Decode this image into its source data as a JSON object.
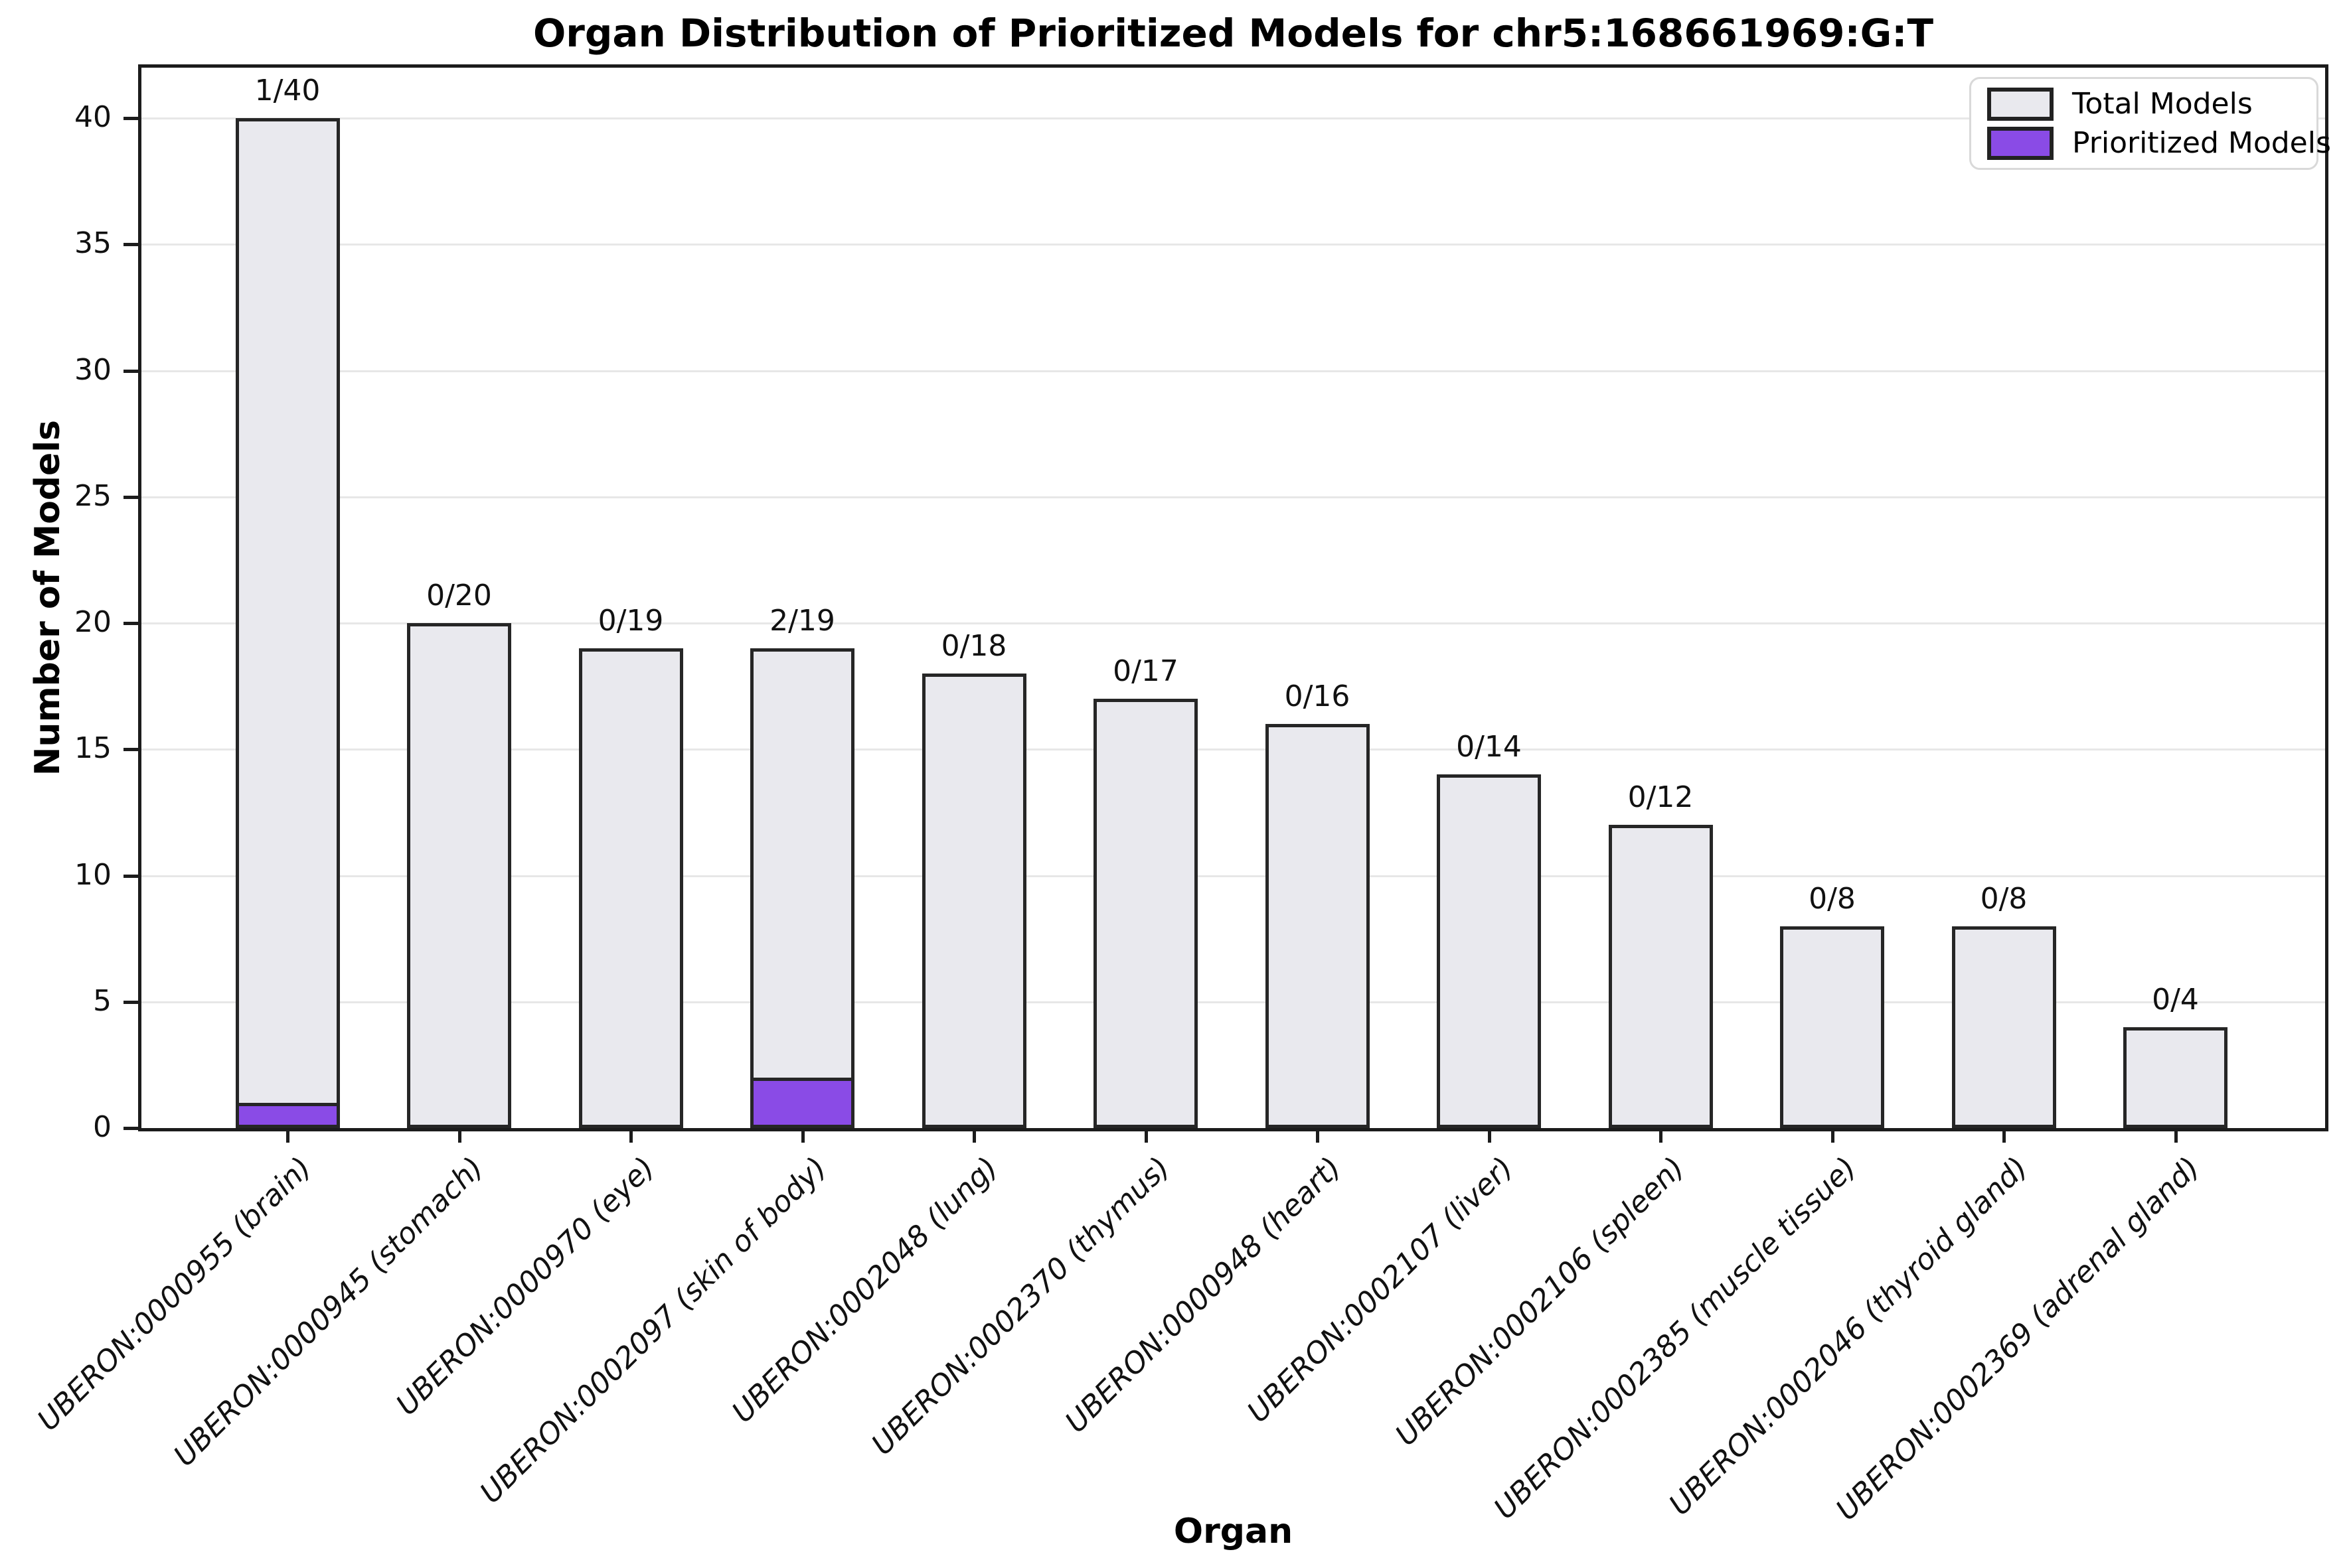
{
  "title": "Organ Distribution of Prioritized Models for chr5:168661969:G:T",
  "chart_data": {
    "type": "bar",
    "title": "Organ Distribution of Prioritized Models for chr5:168661969:G:T",
    "xlabel": "Organ",
    "ylabel": "Number of Models",
    "ylim": [
      0,
      42
    ],
    "yticks": [
      0,
      5,
      10,
      15,
      20,
      25,
      30,
      35,
      40
    ],
    "grid": "horizontal",
    "legend_position": "upper right",
    "categories": [
      "UBERON:0000955 (brain)",
      "UBERON:0000945 (stomach)",
      "UBERON:0000970 (eye)",
      "UBERON:0002097 (skin of body)",
      "UBERON:0002048 (lung)",
      "UBERON:0002370 (thymus)",
      "UBERON:0000948 (heart)",
      "UBERON:0002107 (liver)",
      "UBERON:0002106 (spleen)",
      "UBERON:0002385 (muscle tissue)",
      "UBERON:0002046 (thyroid gland)",
      "UBERON:0002369 (adrenal gland)"
    ],
    "series": [
      {
        "name": "Total Models",
        "color": "#E9E9EE",
        "values": [
          40,
          20,
          19,
          19,
          18,
          17,
          16,
          14,
          12,
          8,
          8,
          4
        ]
      },
      {
        "name": "Prioritized Models",
        "color": "#8A4BE6",
        "values": [
          1,
          0,
          0,
          2,
          0,
          0,
          0,
          0,
          0,
          0,
          0,
          0
        ]
      }
    ],
    "bar_labels": [
      "1/40",
      "0/20",
      "0/19",
      "2/19",
      "0/18",
      "0/17",
      "0/16",
      "0/14",
      "0/12",
      "0/8",
      "0/8",
      "0/4"
    ],
    "bar_edge_color": "#262626"
  },
  "legend": {
    "items": [
      {
        "label": "Total Models",
        "color": "#E9E9EE"
      },
      {
        "label": "Prioritized Models",
        "color": "#8A4BE6"
      }
    ]
  }
}
